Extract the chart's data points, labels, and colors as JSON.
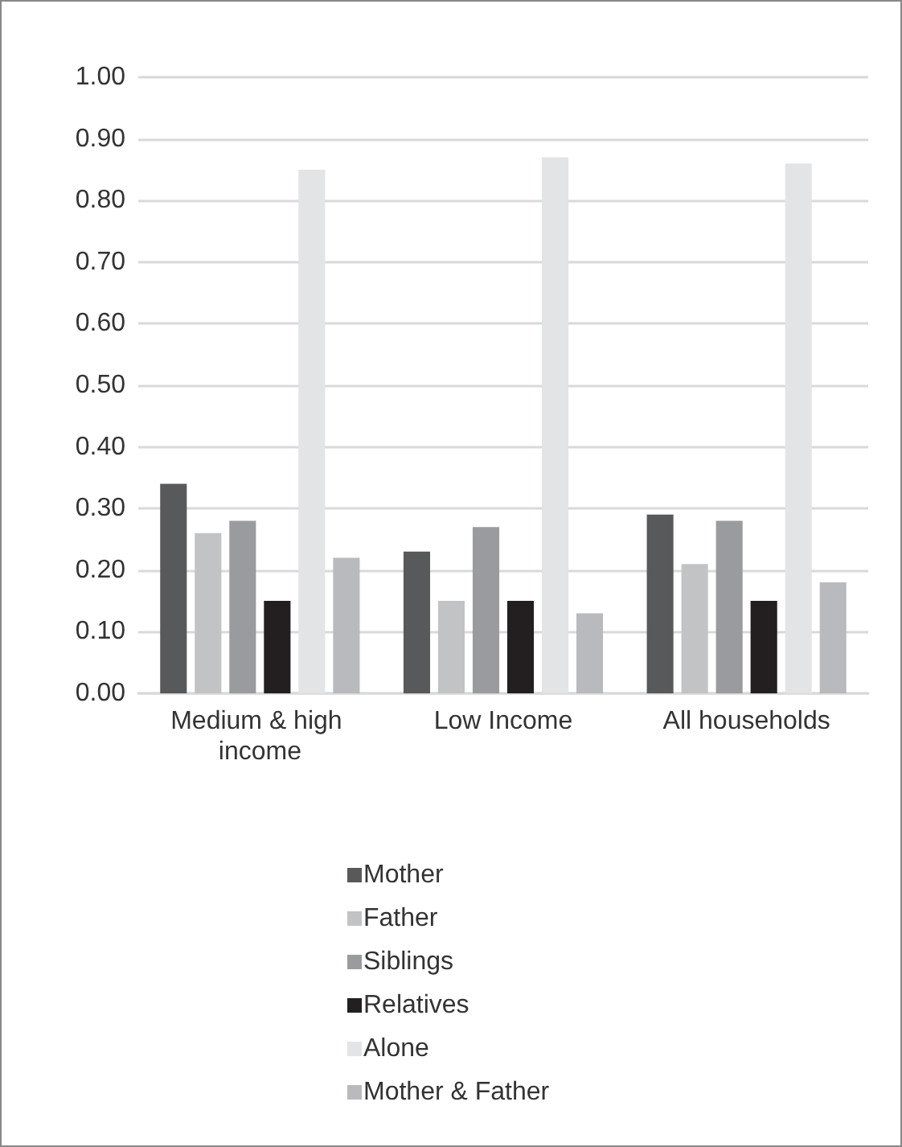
{
  "chart_data": {
    "type": "bar",
    "categories": [
      "Medium & high income",
      "Low Income",
      "All households"
    ],
    "series": [
      {
        "name": "Mother",
        "color": "#58595b",
        "values": [
          0.34,
          0.23,
          0.29
        ]
      },
      {
        "name": "Father",
        "color": "#c2c3c5",
        "values": [
          0.26,
          0.15,
          0.21
        ]
      },
      {
        "name": "Siblings",
        "color": "#9a9b9e",
        "values": [
          0.28,
          0.27,
          0.28
        ]
      },
      {
        "name": "Relatives",
        "color": "#231f20",
        "values": [
          0.15,
          0.15,
          0.15
        ]
      },
      {
        "name": "Alone",
        "color": "#e3e4e6",
        "values": [
          0.85,
          0.87,
          0.86
        ]
      },
      {
        "name": "Mother & Father",
        "color": "#b9babd",
        "values": [
          0.22,
          0.13,
          0.18
        ]
      }
    ],
    "ylim": [
      0,
      1
    ],
    "yticks": [
      {
        "value": 0,
        "label": "0.00"
      },
      {
        "value": 0.1,
        "label": "0.10"
      },
      {
        "value": 0.2,
        "label": "0.20"
      },
      {
        "value": 0.3,
        "label": "0.30"
      },
      {
        "value": 0.4,
        "label": "0.40"
      },
      {
        "value": 0.5,
        "label": "0.50"
      },
      {
        "value": 0.6,
        "label": "0.60"
      },
      {
        "value": 0.7,
        "label": "0.70"
      },
      {
        "value": 0.8,
        "label": "0.80"
      },
      {
        "value": 0.9,
        "label": "0.90"
      },
      {
        "value": 1,
        "label": "1.00"
      }
    ],
    "grid": "y",
    "legend": "bottom"
  }
}
